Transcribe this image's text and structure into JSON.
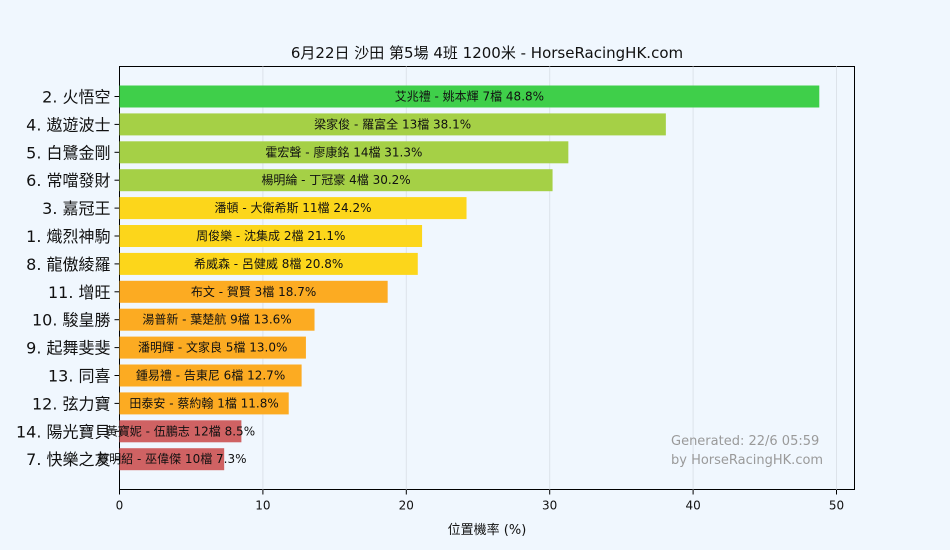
{
  "chart_data": {
    "type": "bar",
    "orientation": "horizontal",
    "title": "6月22日  沙田  第5場  4班  1200米 - HorseRacingHK.com",
    "xlabel": "位置機率 (%)",
    "xlim": [
      0,
      51
    ],
    "xticks": [
      0,
      10,
      20,
      30,
      40,
      50
    ],
    "grid": true,
    "bars": [
      {
        "horse": "2. 火悟空",
        "label": "艾兆禮 - 姚本輝 7檔  48.8%",
        "value": 48.8,
        "color": "#3fcf4a"
      },
      {
        "horse": "4. 遨遊波士",
        "label": "梁家俊 - 羅富全 13檔  38.1%",
        "value": 38.1,
        "color": "#a5d046"
      },
      {
        "horse": "5. 白鷺金剛",
        "label": "霍宏聲 - 廖康銘 14檔  31.3%",
        "value": 31.3,
        "color": "#a5d046"
      },
      {
        "horse": "6. 常噹發財",
        "label": "楊明綸 - 丁冠豪 4檔  30.2%",
        "value": 30.2,
        "color": "#a5d046"
      },
      {
        "horse": "3. 嘉冠王",
        "label": "潘頓 - 大衛希斯 11檔  24.2%",
        "value": 24.2,
        "color": "#fcd61b"
      },
      {
        "horse": "1. 熾烈神駒",
        "label": "周俊樂 - 沈集成 2檔  21.1%",
        "value": 21.1,
        "color": "#fcd61b"
      },
      {
        "horse": "8. 龍傲綾羅",
        "label": "希威森 - 呂健威 8檔  20.8%",
        "value": 20.8,
        "color": "#fcd61b"
      },
      {
        "horse": "11. 增旺",
        "label": "布文 - 賀賢 3檔  18.7%",
        "value": 18.7,
        "color": "#fcab22"
      },
      {
        "horse": "10. 駿皇勝",
        "label": "湯普新 - 葉楚航 9檔  13.6%",
        "value": 13.6,
        "color": "#fcab22"
      },
      {
        "horse": "9. 起舞斐斐",
        "label": "潘明輝 - 文家良 5檔  13.0%",
        "value": 13.0,
        "color": "#fcab22"
      },
      {
        "horse": "13. 同喜",
        "label": "鍾易禮 - 告東尼 6檔  12.7%",
        "value": 12.7,
        "color": "#fcab22"
      },
      {
        "horse": "12. 弦力寶",
        "label": "田泰安 - 蔡約翰 1檔  11.8%",
        "value": 11.8,
        "color": "#fcab22"
      },
      {
        "horse": "14. 陽光寶貝",
        "label": "黃寶妮 - 伍鵬志 12檔  8.5%",
        "value": 8.5,
        "color": "#cf6263"
      },
      {
        "horse": "7. 快樂之友",
        "label": "蔡明紹 - 巫偉傑 10檔  7.3%",
        "value": 7.3,
        "color": "#cf6263"
      }
    ],
    "annotation": {
      "line1": "Generated: 22/6 05:59",
      "line2": "by HorseRacingHK.com"
    }
  }
}
